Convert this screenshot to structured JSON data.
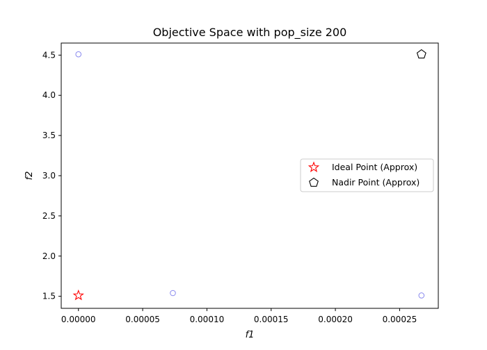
{
  "chart_data": {
    "type": "scatter",
    "title": "Objective Space with pop_size 200",
    "xlabel": "f1",
    "ylabel": "f2",
    "xlim": [
      -1.34e-05,
      0.0002801
    ],
    "ylim": [
      1.35,
      4.65
    ],
    "xticks": [
      {
        "value": 0.0,
        "label": "0.00000"
      },
      {
        "value": 5e-05,
        "label": "0.00005"
      },
      {
        "value": 0.0001,
        "label": "0.00010"
      },
      {
        "value": 0.00015,
        "label": "0.00015"
      },
      {
        "value": 0.0002,
        "label": "0.00020"
      },
      {
        "value": 0.00025,
        "label": "0.00025"
      }
    ],
    "yticks": [
      {
        "value": 1.5,
        "label": "1.5"
      },
      {
        "value": 2.0,
        "label": "2.0"
      },
      {
        "value": 2.5,
        "label": "2.5"
      },
      {
        "value": 3.0,
        "label": "3.0"
      },
      {
        "value": 3.5,
        "label": "3.5"
      },
      {
        "value": 4.0,
        "label": "4.0"
      },
      {
        "value": 4.5,
        "label": "4.5"
      }
    ],
    "grid": false,
    "legend_position": "center-right",
    "series": [
      {
        "marker": "circle-open",
        "color": "#8888ee",
        "points": [
          {
            "x": 0.0,
            "y": 4.51
          },
          {
            "x": 7.35e-05,
            "y": 1.54
          },
          {
            "x": 0.000267,
            "y": 1.51
          }
        ]
      },
      {
        "name": "Ideal Point (Approx)",
        "marker": "star-open",
        "color": "#ff0000",
        "points": [
          {
            "x": 0.0,
            "y": 1.51
          }
        ]
      },
      {
        "name": "Nadir Point (Approx)",
        "marker": "pentagon-open",
        "color": "#000000",
        "points": [
          {
            "x": 0.000267,
            "y": 4.51
          }
        ]
      }
    ]
  }
}
